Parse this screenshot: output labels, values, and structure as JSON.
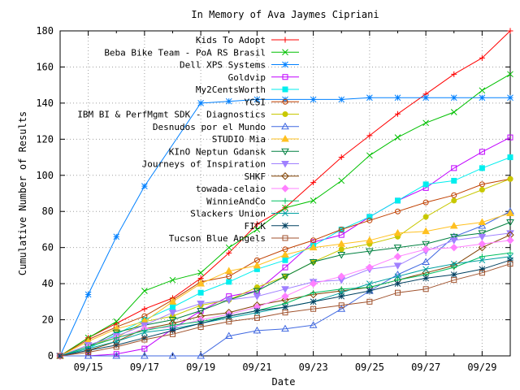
{
  "chart_data": {
    "type": "line",
    "title": "In Memory of Ava Jaymes Cipriani",
    "xlabel": "Date",
    "ylabel": "Cumulative Number of Results",
    "x": [
      "09/14",
      "09/15",
      "09/16",
      "09/17",
      "09/18",
      "09/19",
      "09/20",
      "09/21",
      "09/22",
      "09/23",
      "09/24",
      "09/25",
      "09/26",
      "09/27",
      "09/28",
      "09/29",
      "09/30"
    ],
    "xticks": [
      "09/15",
      "09/17",
      "09/19",
      "09/21",
      "09/23",
      "09/25",
      "09/27",
      "09/29"
    ],
    "xlim": [
      "09/14",
      "09/30"
    ],
    "yticks": [
      0,
      20,
      40,
      60,
      80,
      100,
      120,
      140,
      160,
      180
    ],
    "ylim": [
      0,
      180
    ],
    "grid": true,
    "legend_position": "top-right",
    "series": [
      {
        "name": "Kids To Adopt",
        "color": "#ff0000",
        "marker": "plus",
        "values": [
          0,
          10,
          18,
          26,
          32,
          43,
          57,
          73,
          82,
          96,
          110,
          122,
          134,
          145,
          156,
          165,
          180
        ]
      },
      {
        "name": "Beba Bike Team - PoA RS Brasil",
        "color": "#00c000",
        "marker": "x",
        "values": [
          0,
          10,
          19,
          36,
          42,
          46,
          60,
          70,
          82,
          86,
          97,
          111,
          121,
          129,
          135,
          147,
          156
        ]
      },
      {
        "name": "Dell XPS Systems",
        "color": "#0080ff",
        "marker": "star",
        "values": [
          0,
          34,
          66,
          94,
          null,
          140,
          141,
          142,
          142,
          142,
          142,
          143,
          143,
          143,
          143,
          143,
          143
        ]
      },
      {
        "name": "Goldvip",
        "color": "#c000ff",
        "marker": "square-open",
        "values": [
          0,
          0,
          1,
          4,
          15,
          25,
          33,
          36,
          49,
          63,
          67,
          77,
          86,
          93,
          104,
          113,
          121
        ]
      },
      {
        "name": "My2CentsWorth",
        "color": "#00eeee",
        "marker": "square",
        "values": [
          0,
          4,
          12,
          20,
          27,
          35,
          41,
          48,
          53,
          61,
          70,
          77,
          86,
          95,
          97,
          104,
          110
        ]
      },
      {
        "name": "YCSI",
        "color": "#c04000",
        "marker": "circle-open",
        "values": [
          0,
          9,
          16,
          22,
          31,
          41,
          44,
          53,
          59,
          64,
          70,
          75,
          80,
          85,
          89,
          95,
          98
        ]
      },
      {
        "name": "IBM BI & PerfMgmt SDK - Diagnostics",
        "color": "#c8c800",
        "marker": "circle",
        "values": [
          0,
          6,
          10,
          19,
          22,
          28,
          31,
          38,
          44,
          52,
          59,
          62,
          66,
          77,
          86,
          92,
          98
        ]
      },
      {
        "name": "Desnudos por el Mundo",
        "color": "#4169e1",
        "marker": "triangle-open",
        "values": [
          0,
          0,
          0,
          0,
          0,
          0,
          11,
          14,
          15,
          17,
          26,
          36,
          45,
          52,
          66,
          72,
          80
        ]
      },
      {
        "name": "STUDIO Mia",
        "color": "#ffc020",
        "marker": "triangle",
        "values": [
          0,
          8,
          15,
          19,
          30,
          40,
          47,
          50,
          56,
          60,
          62,
          64,
          68,
          69,
          72,
          74,
          79
        ]
      },
      {
        "name": "KInO Neptun Gdansk",
        "color": "#008040",
        "marker": "triangle-down-open",
        "values": [
          0,
          5,
          13,
          17,
          20,
          25,
          31,
          36,
          44,
          52,
          56,
          58,
          60,
          62,
          66,
          68,
          74
        ]
      },
      {
        "name": "Journeys of Inspiration",
        "color": "#a080ff",
        "marker": "triangle-down",
        "values": [
          0,
          6,
          11,
          17,
          24,
          29,
          31,
          33,
          37,
          41,
          42,
          48,
          50,
          58,
          64,
          66,
          68
        ]
      },
      {
        "name": "SHKF",
        "color": "#804000",
        "marker": "diamond-open",
        "values": [
          0,
          3,
          8,
          15,
          18,
          22,
          24,
          28,
          31,
          34,
          36,
          38,
          42,
          46,
          50,
          60,
          67
        ]
      },
      {
        "name": "towada-celaio",
        "color": "#ff80ff",
        "marker": "diamond",
        "values": [
          0,
          5,
          10,
          15,
          16,
          20,
          23,
          27,
          33,
          40,
          44,
          49,
          55,
          59,
          60,
          62,
          64
        ]
      },
      {
        "name": "WinnieAndCo",
        "color": "#00c060",
        "marker": "plus",
        "values": [
          0,
          5,
          10,
          14,
          17,
          19,
          22,
          25,
          29,
          35,
          37,
          38,
          42,
          45,
          49,
          55,
          57
        ]
      },
      {
        "name": "Slackers Union",
        "color": "#00a0a0",
        "marker": "x",
        "values": [
          0,
          4,
          8,
          13,
          15,
          18,
          21,
          24,
          27,
          30,
          35,
          40,
          44,
          48,
          51,
          53,
          55
        ]
      },
      {
        "name": "FICK",
        "color": "#004060",
        "marker": "star",
        "values": [
          0,
          3,
          6,
          10,
          14,
          18,
          22,
          25,
          27,
          30,
          33,
          36,
          40,
          43,
          45,
          48,
          53
        ]
      },
      {
        "name": "Tucson Blue Angels",
        "color": "#a0522d",
        "marker": "square-open",
        "values": [
          0,
          2,
          5,
          9,
          12,
          16,
          19,
          21,
          24,
          26,
          28,
          30,
          35,
          37,
          42,
          46,
          51
        ]
      }
    ]
  }
}
